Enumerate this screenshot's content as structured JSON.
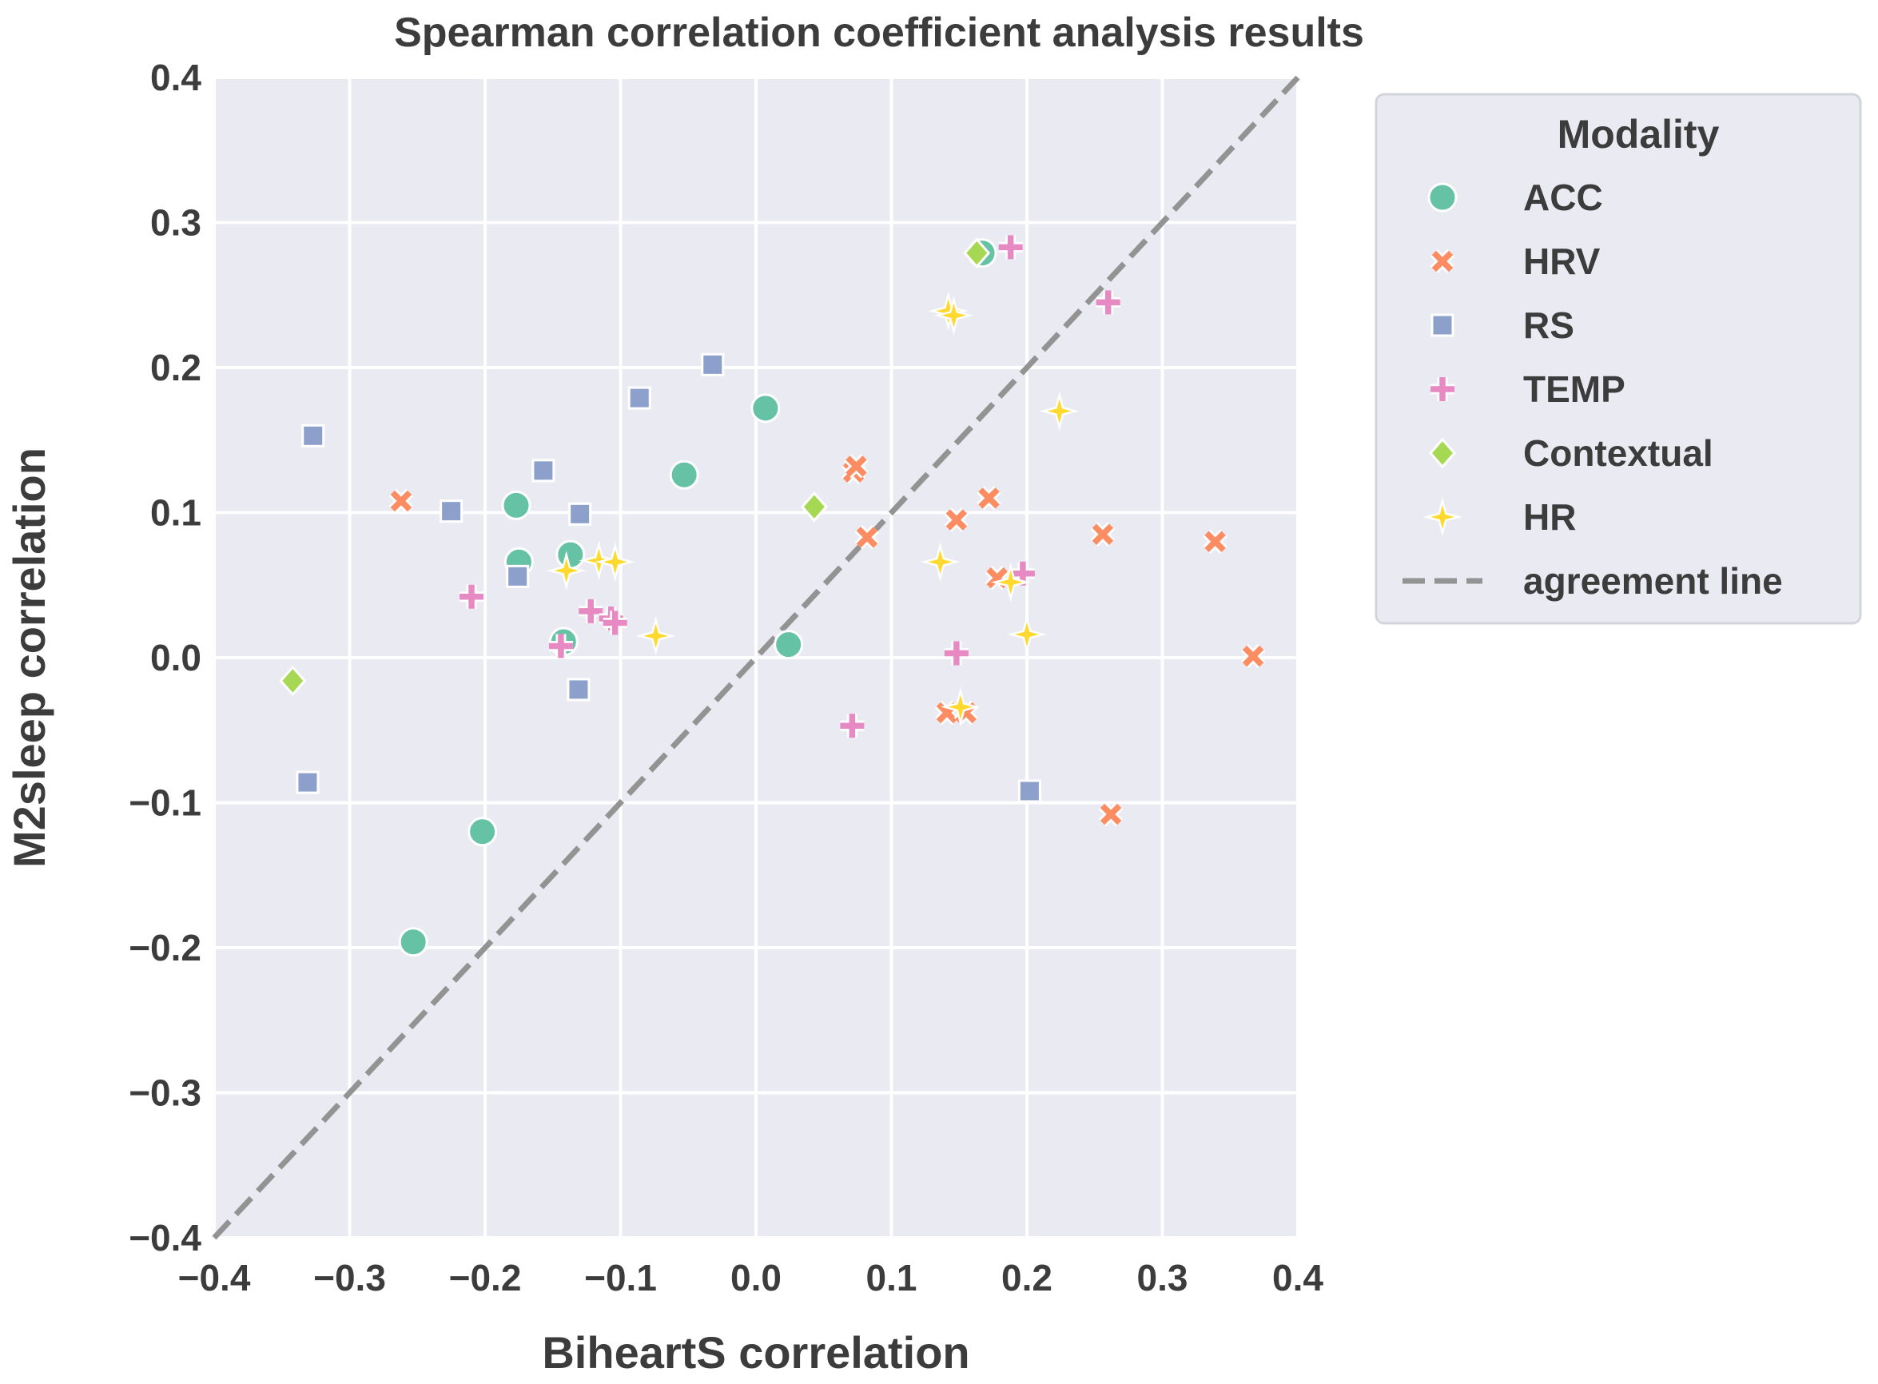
{
  "chart_data": {
    "type": "scatter",
    "title": "Spearman correlation coefficient analysis results",
    "xlabel": "BiheartS correlation",
    "ylabel": "M2sleep correlation",
    "xlim": [
      -0.4,
      0.4
    ],
    "ylim": [
      -0.4,
      0.4
    ],
    "ticks": [
      -0.4,
      -0.3,
      -0.2,
      -0.1,
      0.0,
      0.1,
      0.2,
      0.3,
      0.4
    ],
    "tick_labels": [
      "−0.4",
      "−0.3",
      "−0.2",
      "−0.1",
      "0.0",
      "0.1",
      "0.2",
      "0.3",
      "0.4"
    ],
    "grid": true,
    "legend": {
      "title": "Modality",
      "placement": "outside-right",
      "reference_label": "agreement line"
    },
    "reference_line": {
      "label": "agreement line",
      "from": [
        -0.4,
        -0.4
      ],
      "to": [
        0.4,
        0.4
      ],
      "color": "#939393",
      "style": "dashed"
    },
    "series": [
      {
        "name": "ACC",
        "marker": "circle",
        "color": "#66c2a5",
        "points": [
          [
            -0.253,
            -0.196
          ],
          [
            -0.202,
            -0.12
          ],
          [
            -0.177,
            0.105
          ],
          [
            -0.175,
            0.066
          ],
          [
            -0.137,
            0.071
          ],
          [
            -0.142,
            0.011
          ],
          [
            -0.053,
            0.126
          ],
          [
            0.007,
            0.172
          ],
          [
            0.024,
            0.009
          ],
          [
            0.167,
            0.279
          ]
        ]
      },
      {
        "name": "HRV",
        "marker": "x",
        "color": "#fc8d62",
        "points": [
          [
            -0.262,
            0.108
          ],
          [
            0.072,
            0.128
          ],
          [
            0.074,
            0.132
          ],
          [
            0.082,
            0.083
          ],
          [
            0.148,
            0.095
          ],
          [
            0.172,
            0.11
          ],
          [
            0.178,
            0.055
          ],
          [
            0.141,
            -0.038
          ],
          [
            0.155,
            -0.038
          ],
          [
            0.256,
            0.085
          ],
          [
            0.262,
            -0.108
          ],
          [
            0.339,
            0.08
          ],
          [
            0.367,
            0.001
          ]
        ]
      },
      {
        "name": "RS",
        "marker": "square",
        "color": "#8da0cb",
        "points": [
          [
            -0.327,
            0.153
          ],
          [
            -0.331,
            -0.086
          ],
          [
            -0.225,
            0.101
          ],
          [
            -0.176,
            0.056
          ],
          [
            -0.157,
            0.129
          ],
          [
            -0.13,
            0.099
          ],
          [
            -0.131,
            -0.022
          ],
          [
            -0.086,
            0.179
          ],
          [
            -0.032,
            0.202
          ],
          [
            0.202,
            -0.092
          ]
        ]
      },
      {
        "name": "TEMP",
        "marker": "plus",
        "color": "#e78ac3",
        "points": [
          [
            -0.21,
            0.042
          ],
          [
            -0.144,
            0.008
          ],
          [
            -0.122,
            0.032
          ],
          [
            -0.107,
            0.027
          ],
          [
            -0.104,
            0.024
          ],
          [
            0.071,
            -0.047
          ],
          [
            0.148,
            0.003
          ],
          [
            0.197,
            0.058
          ],
          [
            0.188,
            0.283
          ],
          [
            0.26,
            0.245
          ]
        ]
      },
      {
        "name": "Contextual",
        "marker": "diamond",
        "color": "#a6d854",
        "points": [
          [
            -0.342,
            -0.016
          ],
          [
            0.043,
            0.104
          ],
          [
            0.163,
            0.279
          ]
        ]
      },
      {
        "name": "HR",
        "marker": "star",
        "color": "#ffd92f",
        "points": [
          [
            -0.14,
            0.06
          ],
          [
            -0.116,
            0.067
          ],
          [
            -0.104,
            0.066
          ],
          [
            -0.074,
            0.015
          ],
          [
            0.136,
            0.066
          ],
          [
            0.142,
            0.239
          ],
          [
            0.146,
            0.236
          ],
          [
            0.151,
            -0.034
          ],
          [
            0.188,
            0.052
          ],
          [
            0.2,
            0.016
          ],
          [
            0.224,
            0.17
          ]
        ]
      }
    ]
  }
}
